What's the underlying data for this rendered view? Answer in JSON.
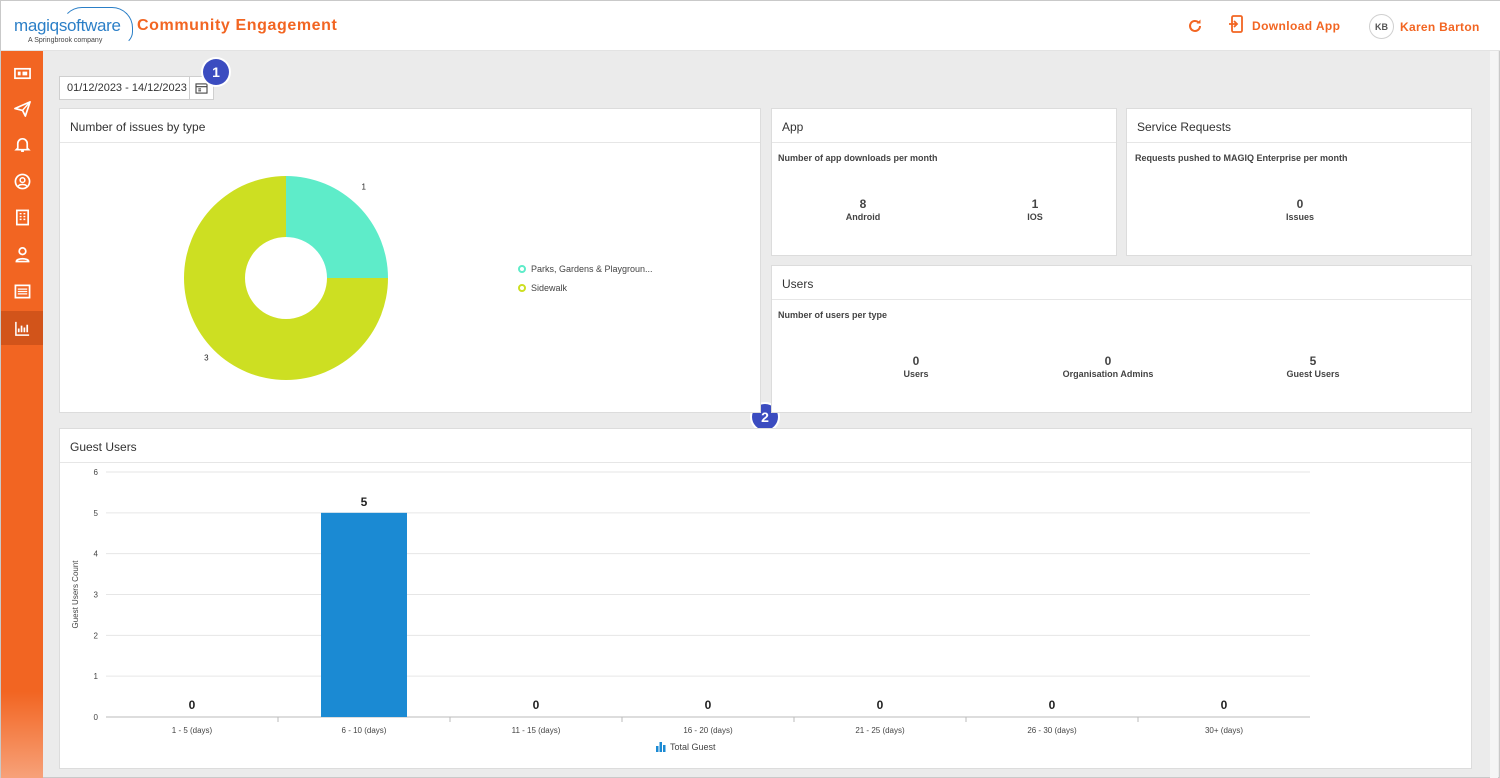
{
  "header": {
    "logo_text_a": "magiq",
    "logo_text_b": "software",
    "logo_sub": "A Springbrook company",
    "app_title": "Community Engagement",
    "download_label": "Download App",
    "user_initials": "KB",
    "user_name": "Karen Barton"
  },
  "sidebar": {
    "items": [
      {
        "icon": "dashboard-icon"
      },
      {
        "icon": "send-icon"
      },
      {
        "icon": "bell-icon"
      },
      {
        "icon": "user-circle-icon"
      },
      {
        "icon": "building-icon"
      },
      {
        "icon": "person-icon"
      },
      {
        "icon": "list-icon"
      },
      {
        "icon": "bar-chart-icon"
      }
    ],
    "active_index": 7
  },
  "date_range": {
    "value": "01/12/2023 - 14/12/2023"
  },
  "markers": [
    "1",
    "2"
  ],
  "issues_card": {
    "title": "Number of issues by type",
    "legend": [
      "Parks, Gardens & Playgroun...",
      "Sidewalk"
    ]
  },
  "app_card": {
    "title": "App",
    "subtitle": "Number of app downloads per month",
    "stats": [
      {
        "value": "8",
        "label": "Android"
      },
      {
        "value": "1",
        "label": "IOS"
      }
    ]
  },
  "service_card": {
    "title": "Service Requests",
    "subtitle": "Requests pushed to MAGIQ Enterprise per month",
    "stats": [
      {
        "value": "0",
        "label": "Issues"
      }
    ]
  },
  "users_card": {
    "title": "Users",
    "subtitle": "Number of users per type",
    "stats": [
      {
        "value": "0",
        "label": "Users"
      },
      {
        "value": "0",
        "label": "Organisation Admins"
      },
      {
        "value": "5",
        "label": "Guest Users"
      }
    ]
  },
  "guest_card": {
    "title": "Guest Users",
    "legend": "Total Guest"
  },
  "colors": {
    "accent": "#f26522",
    "pie_parks": "#5eecc9",
    "pie_sidewalk": "#cddf22",
    "bar": "#1b8ad3"
  },
  "chart_data": [
    {
      "type": "pie",
      "categories": [
        "Parks, Gardens & Playgroun...",
        "Sidewalk"
      ],
      "values": [
        1,
        3
      ]
    },
    {
      "type": "bar",
      "categories": [
        "1 - 5 (days)",
        "6 - 10 (days)",
        "11 - 15 (days)",
        "16 - 20 (days)",
        "21 - 25 (days)",
        "26 - 30 (days)",
        "30+ (days)"
      ],
      "series": [
        {
          "name": "Total Guest",
          "values": [
            0,
            5,
            0,
            0,
            0,
            0,
            0
          ]
        }
      ],
      "ylabel": "Guest Users Count",
      "ylim": [
        0,
        6
      ],
      "yticks": [
        "0",
        "1",
        "2",
        "3",
        "4",
        "5",
        "6"
      ],
      "grid": true,
      "legend": "bottom"
    }
  ]
}
